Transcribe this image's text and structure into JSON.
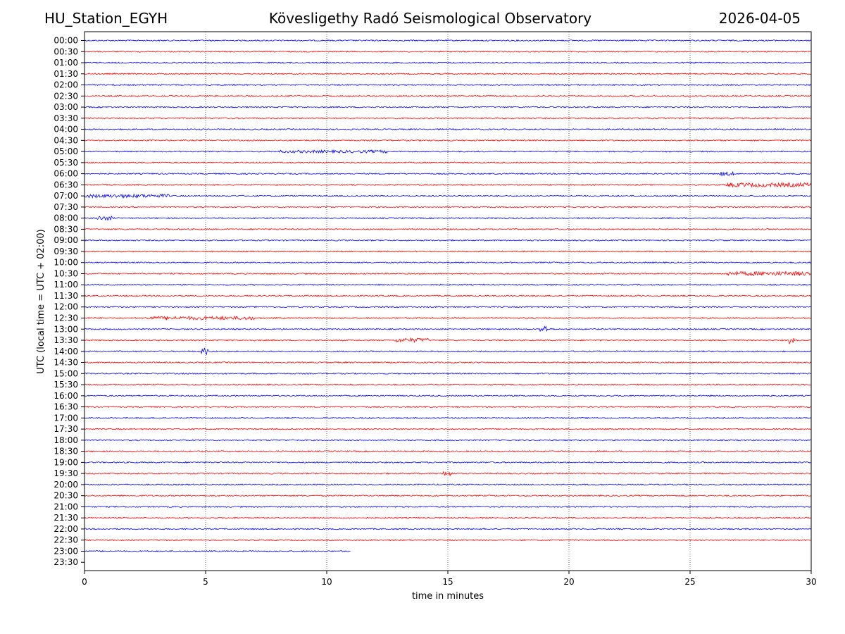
{
  "header": {
    "station": "HU_Station_EGYH",
    "observatory": "Kövesligethy Radó Seismological Observatory",
    "date": "2026-04-05"
  },
  "chart_data": {
    "type": "line",
    "title": "Kövesligethy Radó Seismological Observatory",
    "xlabel": "time in minutes",
    "ylabel": "UTC (local time = UTC + 02:00)",
    "xlim": [
      0,
      30
    ],
    "x_ticks": [
      0,
      5,
      10,
      15,
      20,
      25,
      30
    ],
    "grid": "vertical dotted",
    "row_labels": [
      "00:00",
      "00:30",
      "01:00",
      "01:30",
      "02:00",
      "02:30",
      "03:00",
      "03:30",
      "04:00",
      "04:30",
      "05:00",
      "05:30",
      "06:00",
      "06:30",
      "07:00",
      "07:30",
      "08:00",
      "08:30",
      "09:00",
      "09:30",
      "10:00",
      "10:30",
      "11:00",
      "11:30",
      "12:00",
      "12:30",
      "13:00",
      "13:30",
      "14:00",
      "14:30",
      "15:00",
      "15:30",
      "16:00",
      "16:30",
      "17:00",
      "17:30",
      "18:00",
      "18:30",
      "19:00",
      "19:30",
      "20:00",
      "20:30",
      "21:00",
      "21:30",
      "22:00",
      "22:30",
      "23:00",
      "23:30"
    ],
    "trace_colors": [
      "#0000ff",
      "#ff0000"
    ],
    "trace_end_minutes": {
      "23:00": 11,
      "23:30": 0
    },
    "events": [
      {
        "row": "05:00",
        "start": 8,
        "end": 12.5,
        "amp": 2
      },
      {
        "row": "06:00",
        "start": 26.2,
        "end": 26.8,
        "amp": 3
      },
      {
        "row": "06:30",
        "start": 26.5,
        "end": 30,
        "amp": 3
      },
      {
        "row": "07:00",
        "start": 0,
        "end": 3.5,
        "amp": 2.5
      },
      {
        "row": "08:00",
        "start": 0.5,
        "end": 1.2,
        "amp": 3
      },
      {
        "row": "10:30",
        "start": 26.5,
        "end": 30,
        "amp": 3
      },
      {
        "row": "12:30",
        "start": 2.5,
        "end": 7,
        "amp": 2.5
      },
      {
        "row": "13:00",
        "start": 18.8,
        "end": 19.1,
        "amp": 5
      },
      {
        "row": "13:30",
        "start": 12.8,
        "end": 14.2,
        "amp": 3
      },
      {
        "row": "13:30",
        "start": 29.1,
        "end": 29.3,
        "amp": 5
      },
      {
        "row": "14:00",
        "start": 4.8,
        "end": 5.1,
        "amp": 5
      },
      {
        "row": "19:30",
        "start": 14.8,
        "end": 15.2,
        "amp": 4
      }
    ]
  }
}
